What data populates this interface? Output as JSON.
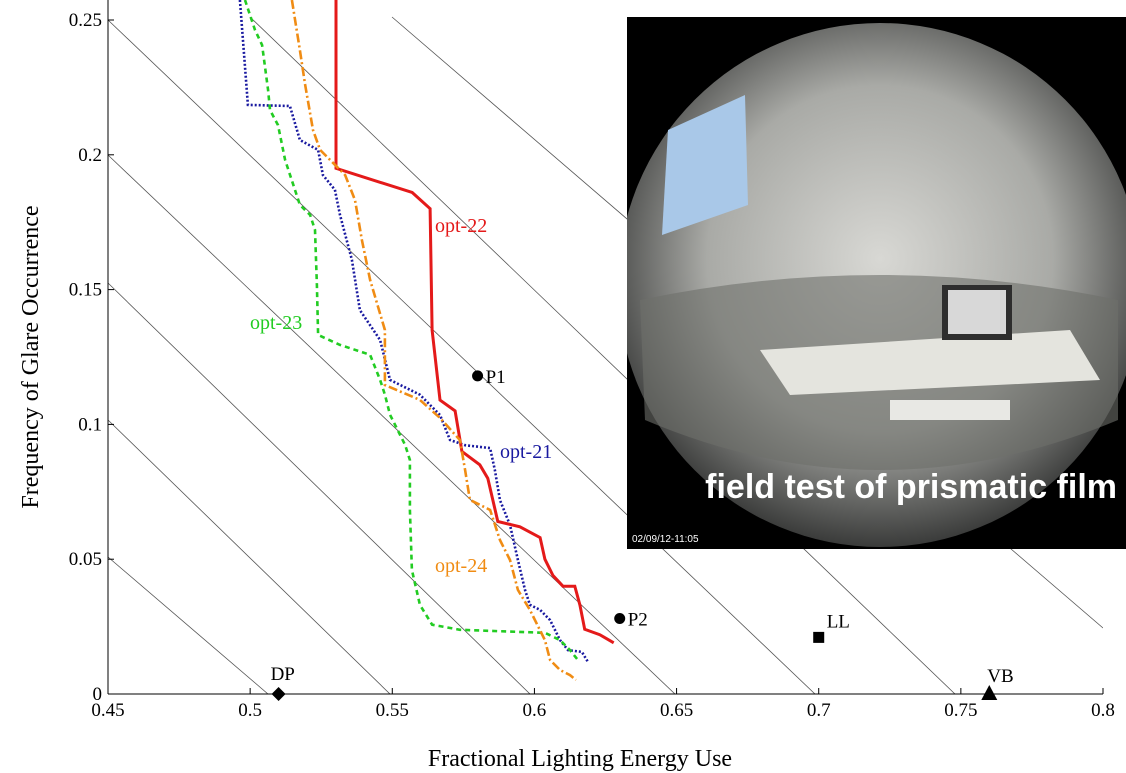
{
  "chart_data": {
    "type": "line",
    "xlabel": "Fractional Lighting Energy Use",
    "ylabel": "Frequency of Glare Occurrence",
    "xlim": [
      0.45,
      0.8
    ],
    "xticks": [
      0.45,
      0.5,
      0.55,
      0.6,
      0.65,
      0.7,
      0.75,
      0.8
    ],
    "ylim": [
      0,
      0.25
    ],
    "yticks": [
      0,
      0.05,
      0.1,
      0.15,
      0.2,
      0.25
    ],
    "series": [
      {
        "name": "opt-21",
        "color": "#1a1aa0",
        "line_style": "dotted",
        "x": [
          0.4964,
          0.4992,
          0.514,
          0.5175,
          0.5239,
          0.5256,
          0.5298,
          0.5316,
          0.5358,
          0.5386,
          0.5457,
          0.5492,
          0.5597,
          0.5668,
          0.5703,
          0.5756,
          0.5844,
          0.5861,
          0.5879,
          0.5914,
          0.5942,
          0.5967,
          0.5984,
          0.602,
          0.6055,
          0.609,
          0.6118,
          0.6167,
          0.6188
        ],
        "values": [
          0.2574,
          0.2185,
          0.2181,
          0.2055,
          0.2018,
          0.1925,
          0.187,
          0.1777,
          0.161,
          0.1424,
          0.1313,
          0.1165,
          0.111,
          0.1035,
          0.0942,
          0.0923,
          0.0912,
          0.083,
          0.0719,
          0.0627,
          0.0497,
          0.0386,
          0.0331,
          0.0312,
          0.0274,
          0.02,
          0.0163,
          0.0156,
          0.0119
        ]
      },
      {
        "name": "opt-22",
        "color": "#e41a1a",
        "line_style": "solid",
        "x": [
          0.5302,
          0.5302,
          0.557,
          0.5633,
          0.564,
          0.5668,
          0.5721,
          0.5745,
          0.5808,
          0.5836,
          0.5871,
          0.5949,
          0.602,
          0.6037,
          0.6065,
          0.61,
          0.6142,
          0.616,
          0.6177,
          0.623,
          0.6279
        ],
        "values": [
          0.2574,
          0.195,
          0.186,
          0.18,
          0.135,
          0.109,
          0.105,
          0.09,
          0.085,
          0.08,
          0.064,
          0.062,
          0.058,
          0.05,
          0.044,
          0.04,
          0.04,
          0.033,
          0.024,
          0.022,
          0.019
        ]
      },
      {
        "name": "opt-23",
        "color": "#22cc22",
        "line_style": "dashed",
        "x": [
          0.4982,
          0.5017,
          0.5042,
          0.5063,
          0.507,
          0.5098,
          0.5123,
          0.5175,
          0.5211,
          0.5228,
          0.5235,
          0.5239,
          0.5316,
          0.5422,
          0.5457,
          0.5474,
          0.5492,
          0.5545,
          0.5562,
          0.5562,
          0.5569,
          0.5597,
          0.564,
          0.5738,
          0.6037,
          0.609,
          0.6125,
          0.6153
        ],
        "values": [
          0.2574,
          0.2463,
          0.2407,
          0.224,
          0.2166,
          0.211,
          0.1981,
          0.1814,
          0.1777,
          0.1721,
          0.1517,
          0.1332,
          0.1295,
          0.1258,
          0.1165,
          0.111,
          0.1036,
          0.0924,
          0.0868,
          0.0683,
          0.046,
          0.0331,
          0.0257,
          0.0238,
          0.0227,
          0.02,
          0.0163,
          0.0126
        ]
      },
      {
        "name": "opt-24",
        "color": "#f08c14",
        "line_style": "dashdot",
        "x": [
          0.5147,
          0.5175,
          0.5193,
          0.5221,
          0.5246,
          0.5334,
          0.5369,
          0.5393,
          0.5422,
          0.5474,
          0.5474,
          0.5597,
          0.5668,
          0.5738,
          0.5756,
          0.5773,
          0.5844,
          0.5879,
          0.5914,
          0.5942,
          0.5984,
          0.6037,
          0.6055,
          0.609,
          0.6125,
          0.6146
        ],
        "values": [
          0.2574,
          0.2388,
          0.2263,
          0.2092,
          0.2018,
          0.1925,
          0.1832,
          0.1684,
          0.1536,
          0.135,
          0.1146,
          0.1091,
          0.1024,
          0.0942,
          0.0831,
          0.072,
          0.0683,
          0.0571,
          0.0497,
          0.0386,
          0.0312,
          0.02,
          0.0126,
          0.0089,
          0.007,
          0.0052
        ]
      }
    ],
    "points": [
      {
        "name": "P1",
        "x": 0.58,
        "y": 0.118,
        "marker": "circle"
      },
      {
        "name": "P2",
        "x": 0.63,
        "y": 0.028,
        "marker": "circle"
      },
      {
        "name": "LL",
        "x": 0.7,
        "y": 0.021,
        "marker": "square"
      },
      {
        "name": "VB",
        "x": 0.76,
        "y": 0,
        "marker": "triangle"
      },
      {
        "name": "DP",
        "x": 0.51,
        "y": 0,
        "marker": "diamond"
      }
    ]
  },
  "inset": {
    "caption": "field test of prismatic film",
    "timestamp": "02/09/12-11:05"
  }
}
